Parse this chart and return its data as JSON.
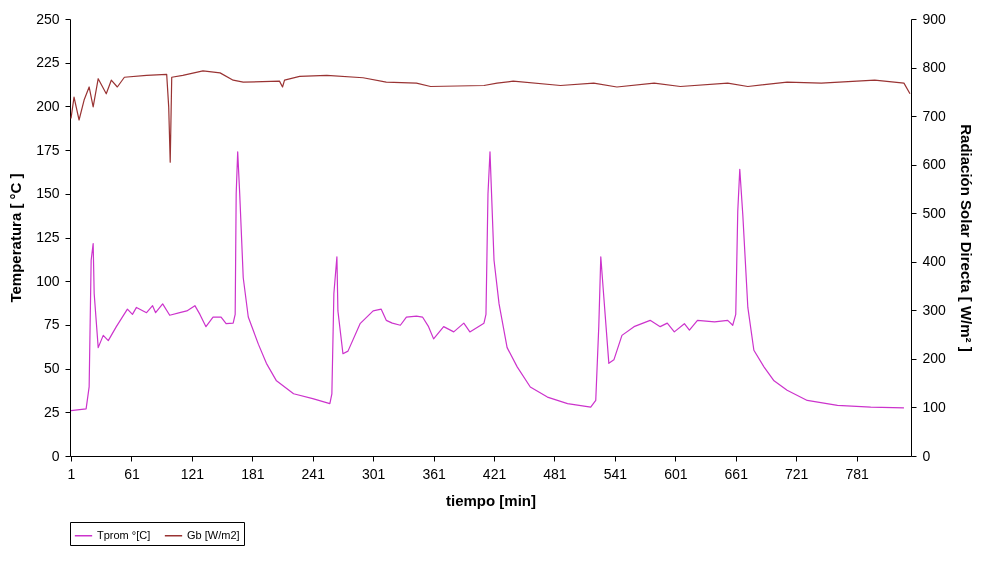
{
  "chart_data": {
    "type": "line",
    "xlabel": "tiempo [min]",
    "ylabel": "Temperatura [ °C ]",
    "y2label": "Radiación Solar Directa [ W/m² ]",
    "xlim": [
      0,
      835
    ],
    "xticks": [
      1,
      61,
      121,
      181,
      241,
      301,
      361,
      421,
      481,
      541,
      601,
      661,
      721,
      781
    ],
    "ylim": [
      0,
      250
    ],
    "yticks": [
      0,
      25,
      50,
      75,
      100,
      125,
      150,
      175,
      200,
      225,
      250
    ],
    "y2lim": [
      0,
      900
    ],
    "y2ticks": [
      0,
      100,
      200,
      300,
      400,
      500,
      600,
      700,
      800,
      900
    ],
    "legend": "bottom",
    "line_style": "solid",
    "series": [
      {
        "name": "Tprom °[C]",
        "color": "#cc33cc",
        "x": [
          1,
          16,
          19,
          21,
          23,
          24,
          28,
          33,
          38,
          46,
          57,
          62,
          66,
          76,
          82,
          85,
          92,
          99,
          109,
          116,
          124,
          129,
          135,
          142,
          150,
          155,
          162,
          164,
          165,
          166.5,
          168.5,
          172,
          177,
          187,
          195,
          205,
          222,
          241,
          258,
          260,
          262,
          265,
          266,
          271,
          276,
          288,
          301,
          309,
          314,
          320,
          328,
          334,
          344,
          350,
          356,
          361,
          371,
          381,
          391,
          397,
          411,
          413,
          415,
          417,
          421,
          426,
          434,
          444,
          457,
          474,
          494,
          517,
          522,
          525,
          527,
          530,
          535,
          540,
          548,
          560,
          576,
          586,
          593,
          600,
          610,
          615,
          623,
          640,
          653,
          658,
          661,
          663,
          665,
          668,
          673,
          679,
          689,
          699,
          712,
          732,
          762,
          795,
          828
        ],
        "values": [
          26,
          27,
          39.5,
          112,
          121.5,
          93,
          62,
          69,
          66,
          74,
          84,
          81,
          85,
          82,
          86,
          82,
          87,
          80.5,
          82,
          83,
          86,
          81,
          74,
          79.5,
          79.5,
          75.7,
          76,
          81,
          150,
          174,
          150,
          102,
          79.5,
          64,
          53,
          43,
          35.6,
          32.8,
          30,
          35.6,
          93,
          114,
          83,
          58.5,
          60,
          75.7,
          83,
          84,
          77.6,
          76,
          74.8,
          79.5,
          80,
          79.5,
          74,
          67,
          74,
          71,
          76,
          71,
          76,
          81,
          150,
          174,
          112,
          87,
          62,
          51,
          39.5,
          33.7,
          30,
          28,
          31.8,
          74,
          114,
          91,
          53,
          55,
          69,
          74,
          77.6,
          74,
          76,
          71,
          75.7,
          72,
          77.6,
          76.7,
          77.6,
          74.8,
          81,
          140,
          164,
          138,
          85,
          60.5,
          51,
          43,
          37.6,
          31.8,
          29,
          28,
          27.5
        ]
      },
      {
        "name": "Gb [W/m2]",
        "color": "#993333",
        "axis": "y2",
        "x": [
          1,
          4,
          9,
          14,
          19,
          23,
          28,
          36,
          41,
          47,
          54,
          76,
          96,
          98,
          99.5,
          101,
          112,
          132,
          149,
          162,
          172,
          208,
          211,
          213,
          228,
          255,
          291,
          314,
          344,
          358,
          411,
          424,
          440,
          487,
          520,
          543,
          580,
          606,
          653,
          673,
          712,
          746,
          799,
          828,
          834
        ],
        "values": [
          695,
          739,
          692,
          733,
          760,
          719,
          777,
          746,
          774,
          760,
          780,
          784,
          786,
          719,
          605,
          780,
          784,
          793,
          789,
          774,
          770,
          772,
          760,
          774,
          782,
          784,
          779,
          770,
          768,
          761,
          763,
          768,
          772,
          763,
          768,
          760,
          768,
          761,
          768,
          761,
          770,
          768,
          774,
          768,
          746
        ]
      }
    ]
  }
}
